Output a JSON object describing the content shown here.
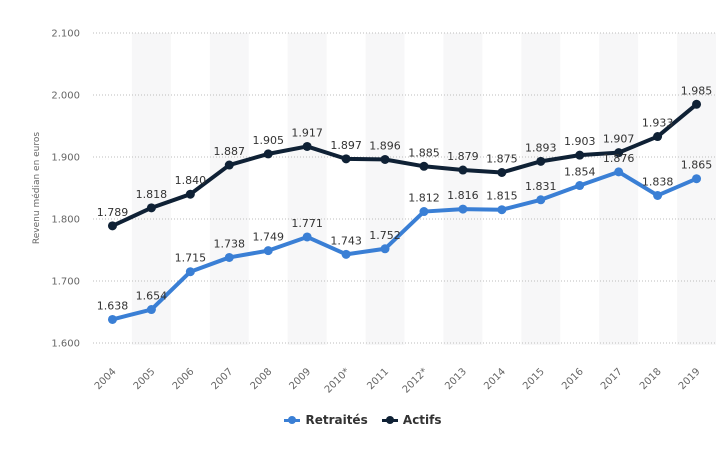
{
  "chart_data": {
    "type": "line",
    "title": "",
    "xlabel": "",
    "ylabel": "Revenu médian en euros",
    "categories": [
      "2004",
      "2005",
      "2006",
      "2007",
      "2008",
      "2009",
      "2010*",
      "2011",
      "2012*",
      "2013",
      "2014",
      "2015",
      "2016",
      "2017",
      "2018",
      "2019"
    ],
    "yticks": [
      "1.600",
      "1.700",
      "1.800",
      "1.900",
      "2.000",
      "2.100"
    ],
    "ytick_values": [
      1600,
      1700,
      1800,
      1900,
      2000,
      2100
    ],
    "ylim": [
      1600,
      2100
    ],
    "grid": "horizontal-dotted",
    "legend_position": "bottom-center",
    "series": [
      {
        "name": "Retraités",
        "color": "#3a7fd5",
        "values": [
          1638,
          1654,
          1715,
          1738,
          1749,
          1771,
          1743,
          1752,
          1812,
          1816,
          1815,
          1831,
          1854,
          1876,
          1838,
          1865
        ],
        "labels": [
          "1.638",
          "1.654",
          "1.715",
          "1.738",
          "1.749",
          "1.771",
          "1.743",
          "1.752",
          "1.812",
          "1.816",
          "1.815",
          "1.831",
          "1.854",
          "1.876",
          "1.838",
          "1.865"
        ]
      },
      {
        "name": "Actifs",
        "color": "#0f2135",
        "values": [
          1789,
          1818,
          1840,
          1887,
          1905,
          1917,
          1897,
          1896,
          1885,
          1879,
          1875,
          1893,
          1903,
          1907,
          1933,
          1985
        ],
        "labels": [
          "1.789",
          "1.818",
          "1.840",
          "1.887",
          "1.905",
          "1.917",
          "1.897",
          "1.896",
          "1.885",
          "1.879",
          "1.875",
          "1.893",
          "1.903",
          "1.907",
          "1.933",
          "1.985"
        ]
      }
    ]
  },
  "legend": {
    "items": [
      {
        "label": "Retraités",
        "color": "#3a7fd5"
      },
      {
        "label": "Actifs",
        "color": "#0f2135"
      }
    ]
  }
}
